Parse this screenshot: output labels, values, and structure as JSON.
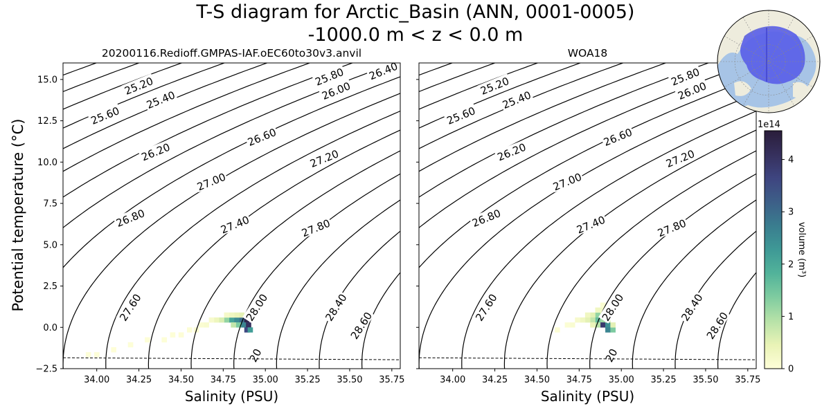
{
  "figure": {
    "title_line1": "T-S diagram for Arctic_Basin (ANN, 0001-0005)",
    "title_line2": "-1000.0 m < z < 0.0 m"
  },
  "chart_data": [
    {
      "type": "heatmap",
      "panel": "left",
      "title": "20200116.Redioff.GMPAS-IAF.oEC60to30v3.anvil",
      "xlabel": "Salinity (PSU)",
      "ylabel": "Potential temperature ($^\\circ$C)",
      "ylabel_display": "Potential temperature (°C)",
      "xlim": [
        33.8,
        35.8
      ],
      "ylim": [
        -2.5,
        16.0
      ],
      "xticks": [
        "34.00",
        "34.25",
        "34.50",
        "34.75",
        "35.00",
        "35.25",
        "35.50",
        "35.75"
      ],
      "yticks": [
        "−2.5",
        "0.0",
        "2.5",
        "5.0",
        "7.5",
        "10.0",
        "12.5",
        "15.0"
      ],
      "density_contour_labels": [
        "25.20",
        "25.40",
        "25.60",
        "25.80",
        "26.00",
        "26.20",
        "26.40",
        "26.60",
        "26.80",
        "27.00",
        "27.20",
        "27.40",
        "27.60",
        "27.80",
        "28.00",
        "28.40",
        "28.60"
      ],
      "freezing_line": {
        "label": "20",
        "t_at_s_min": -1.84,
        "t_at_s_max": -1.96
      },
      "hist_cells": [
        [
          34.86,
          0.45,
          3.0
        ],
        [
          34.89,
          0.45,
          4.3
        ],
        [
          34.87,
          0.15,
          2.6
        ],
        [
          34.9,
          0.15,
          4.1
        ],
        [
          34.89,
          -0.15,
          3.6
        ],
        [
          34.91,
          -0.15,
          2.2
        ],
        [
          34.8,
          0.45,
          2.1
        ],
        [
          34.83,
          0.45,
          2.5
        ],
        [
          34.77,
          0.45,
          1.2
        ],
        [
          34.74,
          0.45,
          0.6
        ],
        [
          34.71,
          0.45,
          0.35
        ],
        [
          34.84,
          0.15,
          1.4
        ],
        [
          34.81,
          0.15,
          0.8
        ],
        [
          34.86,
          0.75,
          0.5
        ],
        [
          34.83,
          0.75,
          0.4
        ],
        [
          34.8,
          0.75,
          0.3
        ],
        [
          34.77,
          0.75,
          0.2
        ],
        [
          34.68,
          0.45,
          0.15
        ],
        [
          34.65,
          0.15,
          0.12
        ],
        [
          34.62,
          0.15,
          0.08
        ],
        [
          34.59,
          -0.15,
          0.05
        ],
        [
          34.55,
          -0.15,
          0.04
        ],
        [
          34.5,
          -0.45,
          0.03
        ],
        [
          34.45,
          -0.45,
          0.02
        ],
        [
          34.4,
          -0.75,
          0.02
        ],
        [
          34.3,
          -0.75,
          0.02
        ],
        [
          34.2,
          -1.05,
          0.015
        ],
        [
          34.0,
          -1.65,
          0.015
        ],
        [
          33.95,
          -1.65,
          0.02
        ],
        [
          34.1,
          -1.35,
          0.01
        ]
      ]
    },
    {
      "type": "heatmap",
      "panel": "right",
      "title": "WOA18",
      "xlabel": "Salinity (PSU)",
      "xlim": [
        33.8,
        35.8
      ],
      "ylim": [
        -2.5,
        16.0
      ],
      "xticks": [
        "34.00",
        "34.25",
        "34.50",
        "34.75",
        "35.00",
        "35.25",
        "35.50",
        "35.75"
      ],
      "density_contour_labels": [
        "25.20",
        "25.40",
        "25.60",
        "25.80",
        "26.00",
        "26.20",
        "26.60",
        "26.80",
        "27.00",
        "27.20",
        "27.40",
        "27.60",
        "27.80",
        "28.00",
        "28.40",
        "28.60"
      ],
      "freezing_line": {
        "label": "20",
        "t_at_s_min": -1.84,
        "t_at_s_max": -1.96
      },
      "hist_cells": [
        [
          34.86,
          0.75,
          1.2
        ],
        [
          34.89,
          0.75,
          0.6
        ],
        [
          34.86,
          0.45,
          1.6
        ],
        [
          34.89,
          0.45,
          1.1
        ],
        [
          34.89,
          0.15,
          3.9
        ],
        [
          34.92,
          0.15,
          2.4
        ],
        [
          34.92,
          -0.15,
          2.6
        ],
        [
          34.95,
          -0.15,
          1.4
        ],
        [
          34.83,
          0.75,
          0.5
        ],
        [
          34.8,
          0.75,
          0.3
        ],
        [
          34.83,
          0.45,
          0.8
        ],
        [
          34.8,
          0.45,
          0.5
        ],
        [
          34.77,
          0.45,
          0.3
        ],
        [
          34.86,
          0.15,
          0.9
        ],
        [
          34.83,
          0.15,
          0.4
        ],
        [
          34.86,
          1.05,
          0.3
        ],
        [
          34.89,
          1.05,
          0.25
        ],
        [
          34.74,
          0.45,
          0.15
        ],
        [
          34.71,
          0.15,
          0.1
        ],
        [
          34.68,
          0.15,
          0.06
        ],
        [
          34.95,
          0.15,
          0.5
        ],
        [
          34.92,
          0.45,
          0.6
        ],
        [
          34.89,
          1.35,
          0.1
        ],
        [
          34.62,
          -0.15,
          0.04
        ]
      ]
    }
  ],
  "colorbar": {
    "label": "volume (m$^3$)",
    "label_display": "volume (m³)",
    "exponent_label": "1e14",
    "vmin": 0,
    "vmax": 4.55,
    "ticks": [
      "0",
      "1",
      "2",
      "3",
      "4"
    ],
    "colormap": [
      "#fefed8",
      "#e9f3b6",
      "#b7e2a8",
      "#7fcca0",
      "#52b39a",
      "#3e9996",
      "#3a7d8f",
      "#3d5f88",
      "#3e4580",
      "#36305d",
      "#2a1d3a"
    ]
  },
  "colors": {
    "contour": "#000000",
    "map_land": "#eeecdd",
    "map_ocean": "#a7c4e6",
    "map_region": "#5a5fe8"
  }
}
